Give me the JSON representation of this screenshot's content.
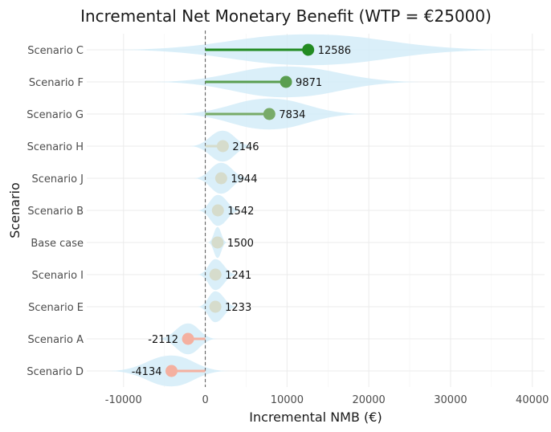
{
  "chart_data": {
    "type": "scatter",
    "title": "Incremental Net Monetary Benefit (WTP = €25000)",
    "xlabel": "Incremental NMB (€)",
    "ylabel": "Scenario",
    "xlim": [
      -14500,
      41500
    ],
    "x_ticks": [
      -10000,
      0,
      10000,
      20000,
      30000,
      40000
    ],
    "x_tick_labels": [
      "-10000",
      "0",
      "10000",
      "20000",
      "30000",
      "40000"
    ],
    "reference_line": 0,
    "grid": true,
    "legend": "none",
    "categories": [
      "Scenario C",
      "Scenario F",
      "Scenario G",
      "Scenario H",
      "Scenario J",
      "Scenario B",
      "Base case",
      "Scenario I",
      "Scenario E",
      "Scenario A",
      "Scenario D"
    ],
    "values": [
      12586,
      9871,
      7834,
      2146,
      1944,
      1542,
      1500,
      1241,
      1233,
      -2112,
      -4134
    ],
    "labels": [
      "12586",
      "9871",
      "7834",
      "2146",
      "1944",
      "1542",
      "1500",
      "1241",
      "1233",
      "-2112",
      "-4134"
    ],
    "distribution_ranges": [
      [
        -12000,
        38000
      ],
      [
        -7000,
        27000
      ],
      [
        -4500,
        20000
      ],
      [
        -2000,
        6000
      ],
      [
        -1500,
        5500
      ],
      [
        -1000,
        4500
      ],
      [
        300,
        2700
      ],
      [
        -1000,
        4000
      ],
      [
        -1000,
        4000
      ],
      [
        -6000,
        1500
      ],
      [
        -12000,
        3000
      ]
    ],
    "colors": {
      "violin": "#d3ecf8",
      "strong_positive": "#228b22",
      "mid_positive": "#5a9e50",
      "weak_positive": "#78ab68",
      "neutral": "#d6dccc",
      "negative": "#f4b0a0",
      "reference": "#555555"
    },
    "point_colors": [
      "#228b22",
      "#5a9e50",
      "#78ab68",
      "#d6dccc",
      "#d6dccc",
      "#d6dccc",
      "#d6dccc",
      "#d6dccc",
      "#d6dccc",
      "#f4b0a0",
      "#f4b0a0"
    ]
  }
}
